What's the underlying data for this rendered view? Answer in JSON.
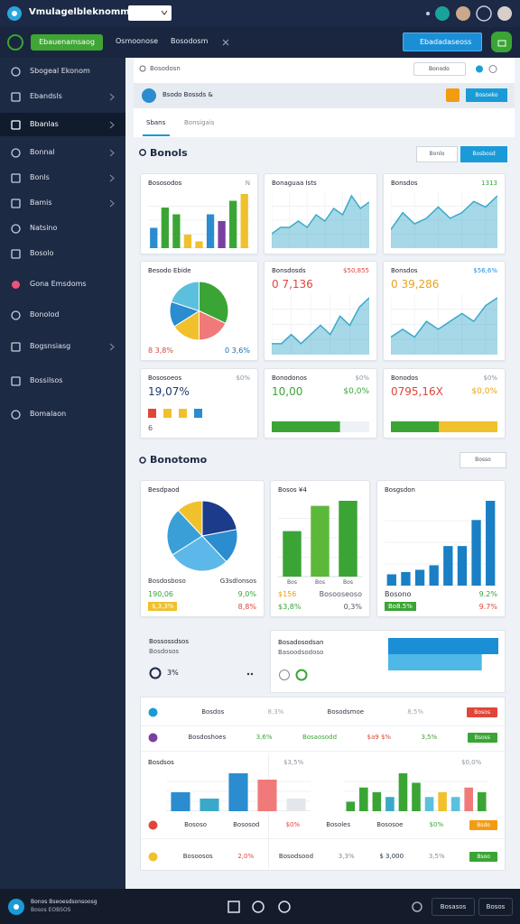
{
  "topbar": {
    "title": "Vmulagelbleknomm"
  },
  "toolbar": {
    "primary": "Ebauenamsaog",
    "links": [
      "Osmoonose",
      "Bosodosm"
    ],
    "action": "Ebadadaseoss"
  },
  "sidebar": {
    "items": [
      "Sbogeal Ekonom",
      "Ebandsls",
      "Bbanlas",
      "Bonnal",
      "Bonls",
      "Bamis",
      "Natsino",
      "Bosolo",
      "Gona Emsdoms",
      "Bonolod",
      "Bogsnsiasg",
      "Bossilsos",
      "Bomalaon"
    ],
    "active": 2
  },
  "search": {
    "placeholder": "Bosodosn",
    "filter": "Bonodo"
  },
  "banner": {
    "text": "Bsodo Bossds &",
    "button": "Bosoeko"
  },
  "tabs": {
    "items": [
      "Sbans",
      "Bonsigais"
    ],
    "active": 0
  },
  "section1": {
    "title": "Bonols",
    "buttons": [
      "Bonlo",
      "Bosbosd"
    ]
  },
  "cards1": [
    {
      "title": "Bososodos",
      "corner": "N",
      "chart": {
        "type": "bar",
        "values": [
          3,
          6,
          5,
          2,
          1,
          5,
          4,
          7,
          8
        ],
        "colors": [
          "#2b8ccf",
          "#3aa535",
          "#3aa535",
          "#f0c12d",
          "#f0c12d",
          "#2b8ccf",
          "#7b3fa0",
          "#3aa535",
          "#f0c12d"
        ]
      }
    },
    {
      "title": "Bonaguaa Ists",
      "chart": {
        "type": "area",
        "values": [
          2,
          3,
          3,
          4,
          3,
          5,
          4,
          6,
          5,
          8,
          6,
          7
        ],
        "color": "#3aa9c9"
      }
    },
    {
      "title": "Bonsdos",
      "corner": "1313",
      "corner_color": "#3aa535",
      "chart": {
        "type": "area",
        "values": [
          3,
          6,
          4,
          5,
          7,
          5,
          6,
          8,
          7,
          9
        ],
        "color": "#3aa9c9"
      }
    },
    {
      "title": "Besodo Ebide",
      "chart": {
        "type": "pie",
        "values": [
          32,
          18,
          16,
          14,
          20
        ],
        "colors": [
          "#3aa535",
          "#f07a7a",
          "#f0c12d",
          "#2b8ccf",
          "#5bc0de"
        ]
      },
      "footer": [
        [
          {
            "text": "8 3,8%",
            "color": "#e0453a"
          },
          {
            "text": "0 3,6%",
            "color": "#1a6fb0"
          }
        ]
      ]
    },
    {
      "title": "Bonsdosds",
      "corner": "$50,855",
      "corner_color": "#e0453a",
      "value": "0 7,136",
      "value_color": "#e0453a",
      "chart": {
        "type": "area",
        "values": [
          1,
          1,
          2,
          1,
          2,
          3,
          2,
          4,
          3,
          5,
          6
        ],
        "color": "#3aa9c9"
      }
    },
    {
      "title": "Bonsdos",
      "corner": "$56,6%",
      "corner_color": "#1a8fd6",
      "value": "0 39,286",
      "value_color": "#e8a317",
      "chart": {
        "type": "area",
        "values": [
          2,
          3,
          2,
          4,
          3,
          4,
          5,
          4,
          6,
          7
        ],
        "color": "#3aa9c9"
      }
    },
    {
      "title": "Bososoeos",
      "corner": "$0%",
      "value": "19,07%",
      "value_color": "#1d3b6b",
      "chart": {
        "type": "swatches",
        "colors": [
          "#e0453a",
          "#f0c12d",
          "#f0c12d",
          "#2b8ccf"
        ]
      },
      "footer": [
        [
          {
            "text": "6",
            "color": "#556"
          }
        ]
      ]
    },
    {
      "title": "Bonodonos",
      "corner": "$0%",
      "value": "10,00",
      "value_color": "#3aa535",
      "value2": "$0,0%",
      "value2_color": "#3aa535",
      "chart": {
        "type": "progress",
        "values": [
          70
        ],
        "max": 100,
        "colors": [
          "#3aa535",
          "#eef1f5"
        ]
      }
    },
    {
      "title": "Bonodos",
      "corner": "$0%",
      "value": "0795,16X",
      "value_color": "#e0453a",
      "value2": "$0,0%",
      "value2_color": "#e8a317",
      "chart": {
        "type": "progress",
        "values": [
          45
        ],
        "max": 100,
        "colors": [
          "#3aa535",
          "#f0c12d"
        ]
      }
    }
  ],
  "section2": {
    "title": "Bonotomo",
    "button": "Bosso"
  },
  "cards2": [
    {
      "title": "Besdpaod",
      "chart": {
        "type": "pie",
        "values": [
          22,
          16,
          28,
          22,
          12
        ],
        "colors": [
          "#1d3b8b",
          "#2b8ccf",
          "#5bb8e8",
          "#3a9fd6",
          "#f0c12d"
        ]
      },
      "footer": [
        [
          {
            "text": "Bosdosboso",
            "color": "#334"
          },
          {
            "text": "G3sdlonsos",
            "color": "#334"
          }
        ],
        [
          {
            "text": "190,06",
            "color": "#3aa535"
          },
          {
            "text": "9,0%",
            "color": "#3aa535"
          }
        ],
        [
          {
            "text": "$,3,3%",
            "badge": "#f0c12d"
          },
          {
            "text": "8,8%",
            "color": "#e0453a"
          }
        ]
      ]
    },
    {
      "title": "Bosos ¥4",
      "chart": {
        "type": "bar",
        "values": [
          45,
          70,
          75
        ],
        "colors": [
          "#3aa535",
          "#5cb83a",
          "#3aa535"
        ],
        "categories": [
          "Bos",
          "Bos",
          "Bos"
        ]
      },
      "footer": [
        [
          {
            "text": "$156",
            "color": "#e8a317"
          },
          {
            "text": "Bosooseoso",
            "color": "#556"
          }
        ],
        [
          {
            "text": "$3,8%",
            "color": "#3aa535"
          },
          {
            "text": "0,3%",
            "color": "#556"
          }
        ]
      ]
    },
    {
      "title": "Bosgsdon",
      "chart": {
        "type": "bar",
        "values": [
          10,
          12,
          14,
          18,
          35,
          35,
          58,
          75
        ],
        "color": "#1a7fc4"
      },
      "footer": [
        [
          {
            "text": "Bosono",
            "color": "#334"
          },
          {
            "text": "9.2%",
            "color": "#3aa535"
          }
        ],
        [
          {
            "text": "Bo8.5%",
            "badge": "#3aa535"
          },
          {
            "text": "9.7%",
            "color": "#e0453a"
          }
        ]
      ]
    }
  ],
  "summary": [
    {
      "title": "Bossossdsos",
      "subtitle": "Bosdosos",
      "value": "3%"
    },
    {
      "title": "Bosadosodsan",
      "subtitle": "Basoodsodoso",
      "chart": {
        "type": "hbar",
        "values": [
          100,
          85
        ],
        "colors": [
          "#1a8fd6",
          "#4fb8e6"
        ]
      }
    }
  ],
  "list": {
    "rows": [
      [
        {
          "text": "Bosdos",
          "icon": "#1a9bd7"
        },
        {
          "text": "8.3%",
          "color": "#a0a8b0"
        },
        {
          "text": "Bosodsmoe"
        },
        {
          "text": "8,5%",
          "color": "#a0a8b0"
        },
        {
          "text": "Bosos",
          "button": "#e0453a"
        }
      ],
      [
        {
          "text": "Bosdoshoes",
          "icon": "#7b3fa0"
        },
        {
          "text": "3,6%",
          "color": "#3aa535"
        },
        {
          "text": "Bosaosodd",
          "color": "#3aa535"
        },
        {
          "text": "$a9 $%",
          "color": "#e0453a"
        },
        {
          "text": "3,5%",
          "color": "#3aa535"
        },
        {
          "text": "Bsoss",
          "button": "#3aa535"
        }
      ],
      [
        {
          "text": "Bososo",
          "icon": "#e0453a"
        },
        {
          "text": "Bososod"
        },
        {
          "text": "$0%",
          "color": "#e0453a"
        },
        {
          "text": "Bosoles"
        },
        {
          "text": "Bososoe"
        },
        {
          "text": "$0%",
          "color": "#3aa535"
        },
        {
          "text": "Bsdo",
          "button": "#f39c12"
        }
      ],
      [
        {
          "text": "Bosoosos",
          "icon": "#f0c12d"
        },
        {
          "text": "2,0%",
          "color": "#e0453a"
        },
        {
          "text": "Bosodsood"
        },
        {
          "text": "3,3%",
          "color": "#889"
        },
        {
          "text": "$ 3,000",
          "color": "#1d2a44"
        },
        {
          "text": "3,5%",
          "color": "#889"
        },
        {
          "text": "Bsoo",
          "button": "#3aa535"
        }
      ]
    ],
    "charts": [
      {
        "title": "Bosdsos",
        "corner": "$3,5%",
        "chart": {
          "type": "bar",
          "values": [
            3,
            2,
            6,
            5,
            2
          ],
          "colors": [
            "#2b8ccf",
            "#3aa9c9",
            "#2b8ccf",
            "#f07a7a",
            "#e3e7ec"
          ]
        }
      },
      {
        "corner": "$0,0%",
        "chart": {
          "type": "bar",
          "values": [
            2,
            5,
            4,
            3,
            8,
            6,
            3,
            4,
            3,
            5,
            4
          ],
          "colors": [
            "#3aa535",
            "#3aa535",
            "#3aa535",
            "#3aa9c9",
            "#3aa535",
            "#3aa535",
            "#5bc0de",
            "#f0c12d",
            "#5bc0de",
            "#f07a7a",
            "#3aa535"
          ]
        }
      }
    ]
  },
  "bottombar": {
    "title": "Bonos Bseoesdsonsoosg",
    "subtitle": "Bosos EOBSOS",
    "buttons": [
      "Bosasos",
      "Bosos"
    ]
  }
}
